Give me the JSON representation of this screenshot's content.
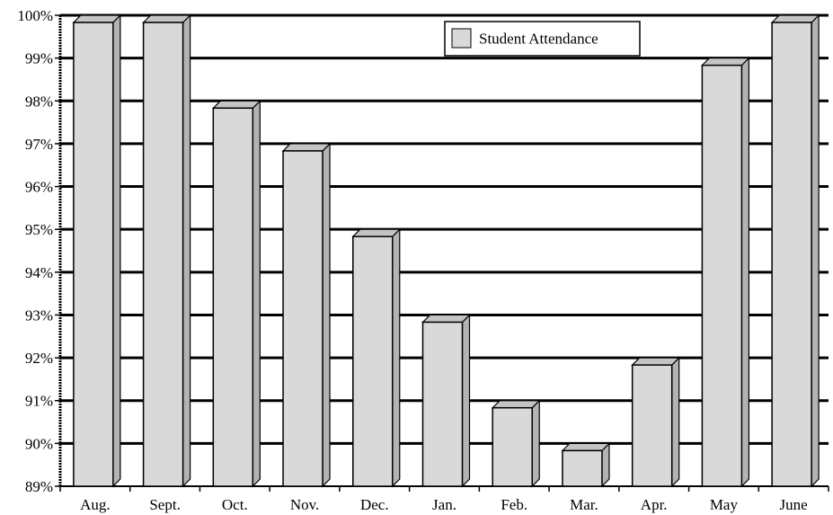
{
  "chart_data": {
    "type": "bar",
    "categories": [
      "Aug.",
      "Sept.",
      "Oct.",
      "Nov.",
      "Dec.",
      "Jan.",
      "Feb.",
      "Mar.",
      "Apr.",
      "May",
      "June"
    ],
    "series": [
      {
        "name": "Student Attendance",
        "values": [
          100,
          100,
          98,
          97,
          95,
          93,
          91,
          90,
          92,
          99,
          100
        ]
      }
    ],
    "title": "",
    "xlabel": "",
    "ylabel": "",
    "ylim": [
      89,
      100
    ],
    "yticks": [
      89,
      90,
      91,
      92,
      93,
      94,
      95,
      96,
      97,
      98,
      99,
      100
    ],
    "ytick_labels": [
      "89%",
      "90%",
      "91%",
      "92%",
      "93%",
      "94%",
      "95%",
      "96%",
      "97%",
      "98%",
      "99%",
      "100%"
    ],
    "grid": true,
    "legend_position": "top-right",
    "bar_style": "3d",
    "colors": {
      "bar_face": "#d9d9d9",
      "bar_side": "#b3b3b3",
      "bar_top": "#c4c4c4",
      "grid": "#000000",
      "axis": "#000000"
    }
  }
}
